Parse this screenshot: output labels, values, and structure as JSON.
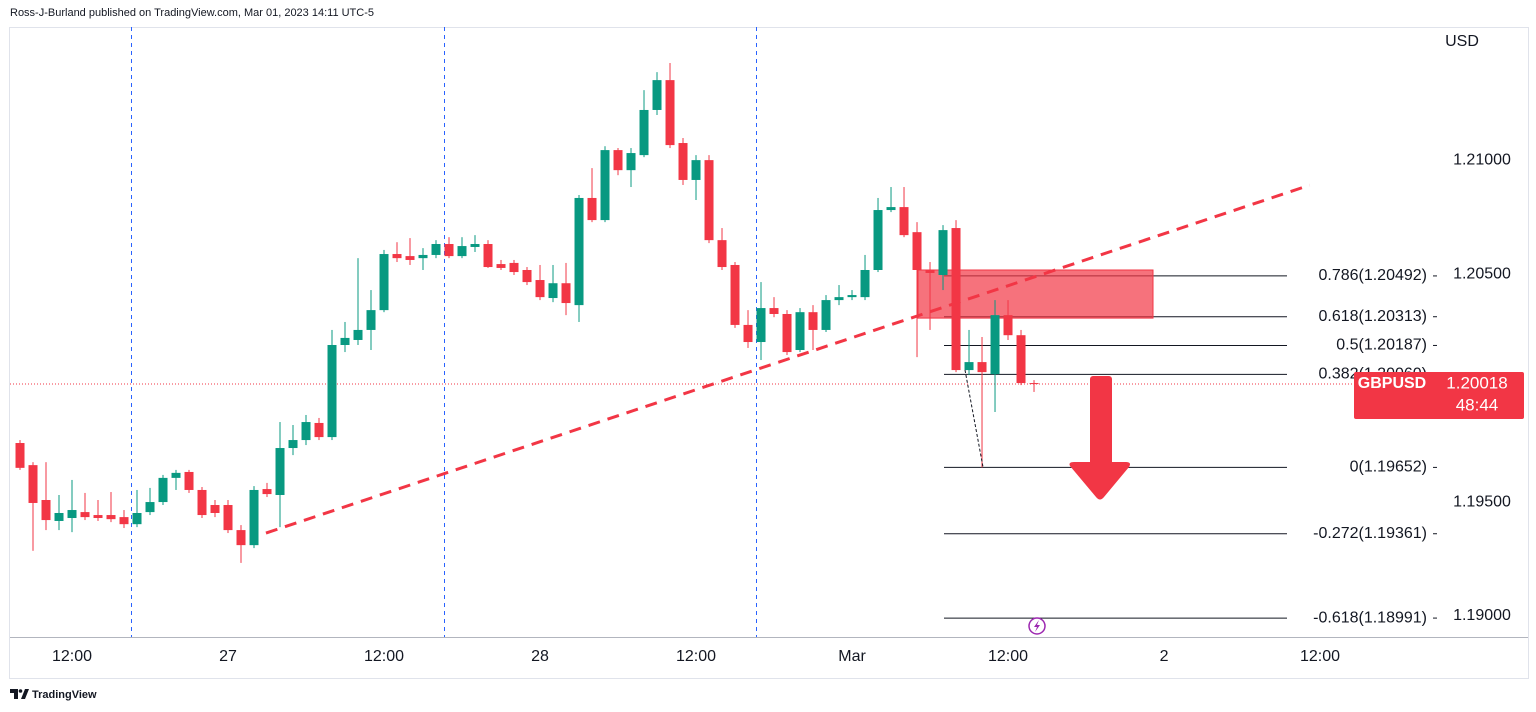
{
  "chart_data": {
    "type": "candlestick",
    "header": "Ross-J-Burland published on TradingView.com, Mar 01, 2023 14:11 UTC-5",
    "currency": "USD",
    "brand": "TradingView",
    "symbol": "GBPUSD",
    "last_price": 1.20018,
    "countdown": "48:44",
    "up_color": "#089981",
    "down_color": "#f23645",
    "x": [
      -16,
      -15,
      -14,
      -13,
      -12,
      -11,
      -10,
      -9,
      -8,
      -7,
      -6,
      -5,
      -4,
      -3,
      -2,
      -1,
      0,
      1,
      2,
      3,
      4,
      5,
      6,
      7,
      8,
      9,
      10,
      11,
      12,
      13,
      14,
      15,
      16,
      17,
      18,
      19,
      20,
      21,
      22,
      23,
      24,
      25,
      26,
      27,
      28,
      29,
      30,
      31,
      32,
      33,
      34,
      35,
      36,
      37,
      38,
      39,
      40,
      41,
      42,
      43,
      44,
      45,
      46,
      47,
      48,
      49,
      50,
      51,
      52,
      53,
      54,
      55,
      56,
      57,
      58,
      59,
      60,
      61,
      62
    ],
    "open": [
      1.19759,
      1.19662,
      1.19509,
      1.19417,
      1.1943,
      1.19456,
      1.19443,
      1.19443,
      1.19434,
      1.19403,
      1.19456,
      1.195,
      1.19606,
      1.19632,
      1.19553,
      1.19487,
      1.19487,
      1.19377,
      1.19311,
      1.19557,
      1.19531,
      1.19737,
      1.19772,
      1.19847,
      1.19785,
      1.20189,
      1.20211,
      1.20255,
      1.20342,
      1.20588,
      1.20579,
      1.2057,
      1.20584,
      1.20632,
      1.20579,
      1.20619,
      1.20632,
      1.20544,
      1.20549,
      1.20518,
      1.20474,
      1.20395,
      1.2046,
      1.20364,
      1.20834,
      1.20737,
      1.21044,
      1.20956,
      1.21022,
      1.2122,
      1.21351,
      1.21075,
      1.20913,
      1.21,
      1.20649,
      1.2054,
      1.20277,
      1.20202,
      1.20351,
      1.20325,
      1.20167,
      1.20333,
      1.20255,
      1.20386,
      1.20399,
      1.20399,
      1.20518,
      1.20781,
      1.20794,
      1.20684,
      1.20518,
      1.20496,
      1.20702,
      1.20079,
      1.20114,
      1.20061,
      1.2032,
      1.20232,
      1.20022
    ],
    "high": [
      1.19772,
      1.19675,
      1.19675,
      1.19531,
      1.19597,
      1.1954,
      1.19509,
      1.19544,
      1.19465,
      1.19553,
      1.19562,
      1.19619,
      1.19641,
      1.19641,
      1.19566,
      1.19509,
      1.19509,
      1.19399,
      1.1957,
      1.19584,
      1.19851,
      1.19838,
      1.19882,
      1.19869,
      1.20255,
      1.2029,
      1.2057,
      1.2043,
      1.20606,
      1.2064,
      1.20658,
      1.20614,
      1.20649,
      1.20662,
      1.20662,
      1.20671,
      1.20649,
      1.20562,
      1.20562,
      1.20531,
      1.2054,
      1.2054,
      1.20549,
      1.20847,
      1.20965,
      1.21061,
      1.21053,
      1.21053,
      1.21307,
      1.21386,
      1.21426,
      1.21097,
      1.21022,
      1.21022,
      1.20702,
      1.20553,
      1.20342,
      1.20465,
      1.20399,
      1.20342,
      1.20351,
      1.20364,
      1.20408,
      1.20452,
      1.2043,
      1.20584,
      1.20834,
      1.20882,
      1.20882,
      1.20728,
      1.20553,
      1.20715,
      1.20737,
      1.20255,
      1.20224,
      1.20386,
      1.20386,
      1.20255,
      1.20035
    ],
    "low": [
      1.19641,
      1.19286,
      1.19377,
      1.19377,
      1.19368,
      1.19421,
      1.19417,
      1.19412,
      1.19386,
      1.1939,
      1.19443,
      1.19487,
      1.19553,
      1.1954,
      1.1943,
      1.19434,
      1.19364,
      1.19233,
      1.19298,
      1.19522,
      1.1939,
      1.19706,
      1.1975,
      1.19772,
      1.19772,
      1.20158,
      1.20189,
      1.20167,
      1.20333,
      1.20553,
      1.2054,
      1.20518,
      1.2057,
      1.2057,
      1.2057,
      1.20597,
      1.20527,
      1.20518,
      1.20496,
      1.20452,
      1.20386,
      1.20377,
      1.2032,
      1.2029,
      1.20728,
      1.20728,
      1.20934,
      1.20882,
      1.21013,
      1.21198,
      1.21053,
      1.20891,
      1.20825,
      1.20636,
      1.20518,
      1.20264,
      1.20176,
      1.20123,
      1.20311,
      1.20145,
      1.20158,
      1.20167,
      1.20246,
      1.20364,
      1.20386,
      1.20386,
      1.20509,
      1.20772,
      1.20662,
      1.20136,
      1.20255,
      1.2043,
      1.2007,
      1.20057,
      1.19652,
      1.19895,
      1.20211,
      1.20013,
      1.19983
    ],
    "close": [
      1.1965,
      1.19496,
      1.19421,
      1.19452,
      1.19465,
      1.19434,
      1.1943,
      1.19425,
      1.19403,
      1.19452,
      1.195,
      1.19606,
      1.19628,
      1.19553,
      1.19443,
      1.19452,
      1.19377,
      1.19311,
      1.19553,
      1.19535,
      1.19737,
      1.19772,
      1.19851,
      1.19785,
      1.20189,
      1.2022,
      1.20255,
      1.20342,
      1.20588,
      1.2057,
      1.20562,
      1.20584,
      1.20632,
      1.20579,
      1.20623,
      1.20632,
      1.20531,
      1.20527,
      1.20509,
      1.20465,
      1.20399,
      1.2046,
      1.20373,
      1.20834,
      1.20737,
      1.21044,
      1.20956,
      1.21031,
      1.2122,
      1.21351,
      1.21066,
      1.20913,
      1.21,
      1.20649,
      1.20531,
      1.20277,
      1.20202,
      1.20351,
      1.20325,
      1.20158,
      1.20333,
      1.20255,
      1.20386,
      1.20399,
      1.20408,
      1.20518,
      1.20781,
      1.20794,
      1.20671,
      1.20518,
      1.20505,
      1.20693,
      1.20079,
      1.20114,
      1.2007,
      1.2032,
      1.20232,
      1.20022,
      1.20018
    ],
    "xlim": [
      -16.77,
      92.46
    ],
    "ylim": [
      1.18908,
      1.21584
    ],
    "xticks": [
      {
        "value": -12,
        "label": "12:00"
      },
      {
        "value": 0,
        "label": "27"
      },
      {
        "value": 12,
        "label": "12:00"
      },
      {
        "value": 24,
        "label": "28"
      },
      {
        "value": 36,
        "label": "12:00"
      },
      {
        "value": 48,
        "label": "Mar"
      },
      {
        "value": 60,
        "label": "12:00"
      },
      {
        "value": 72,
        "label": "2"
      },
      {
        "value": 84,
        "label": "12:00"
      }
    ],
    "yticks": [
      {
        "value": 1.21,
        "label": "1.21000"
      },
      {
        "value": 1.205,
        "label": "1.20500"
      },
      {
        "value": 1.195,
        "label": "1.19500"
      },
      {
        "value": 1.19,
        "label": "1.19000"
      }
    ],
    "fib_levels": [
      {
        "price": 1.20492,
        "label": "0.786(1.20492)"
      },
      {
        "price": 1.20313,
        "label": "0.618(1.20313)"
      },
      {
        "price": 1.20187,
        "label": "0.5(1.20187)"
      },
      {
        "price": 1.2006,
        "label": "0.382(1.20060)"
      },
      {
        "price": 1.19652,
        "label": "0(1.19652)"
      },
      {
        "price": 1.19361,
        "label": "-0.272(1.19361)"
      },
      {
        "price": 1.18991,
        "label": "-0.618(1.18991)"
      }
    ],
    "zone": [
      1.20307,
      1.20518
    ],
    "trendline": {
      "x": [
        2.92,
        83.2
      ],
      "y": [
        1.19364,
        1.2089
      ]
    }
  }
}
